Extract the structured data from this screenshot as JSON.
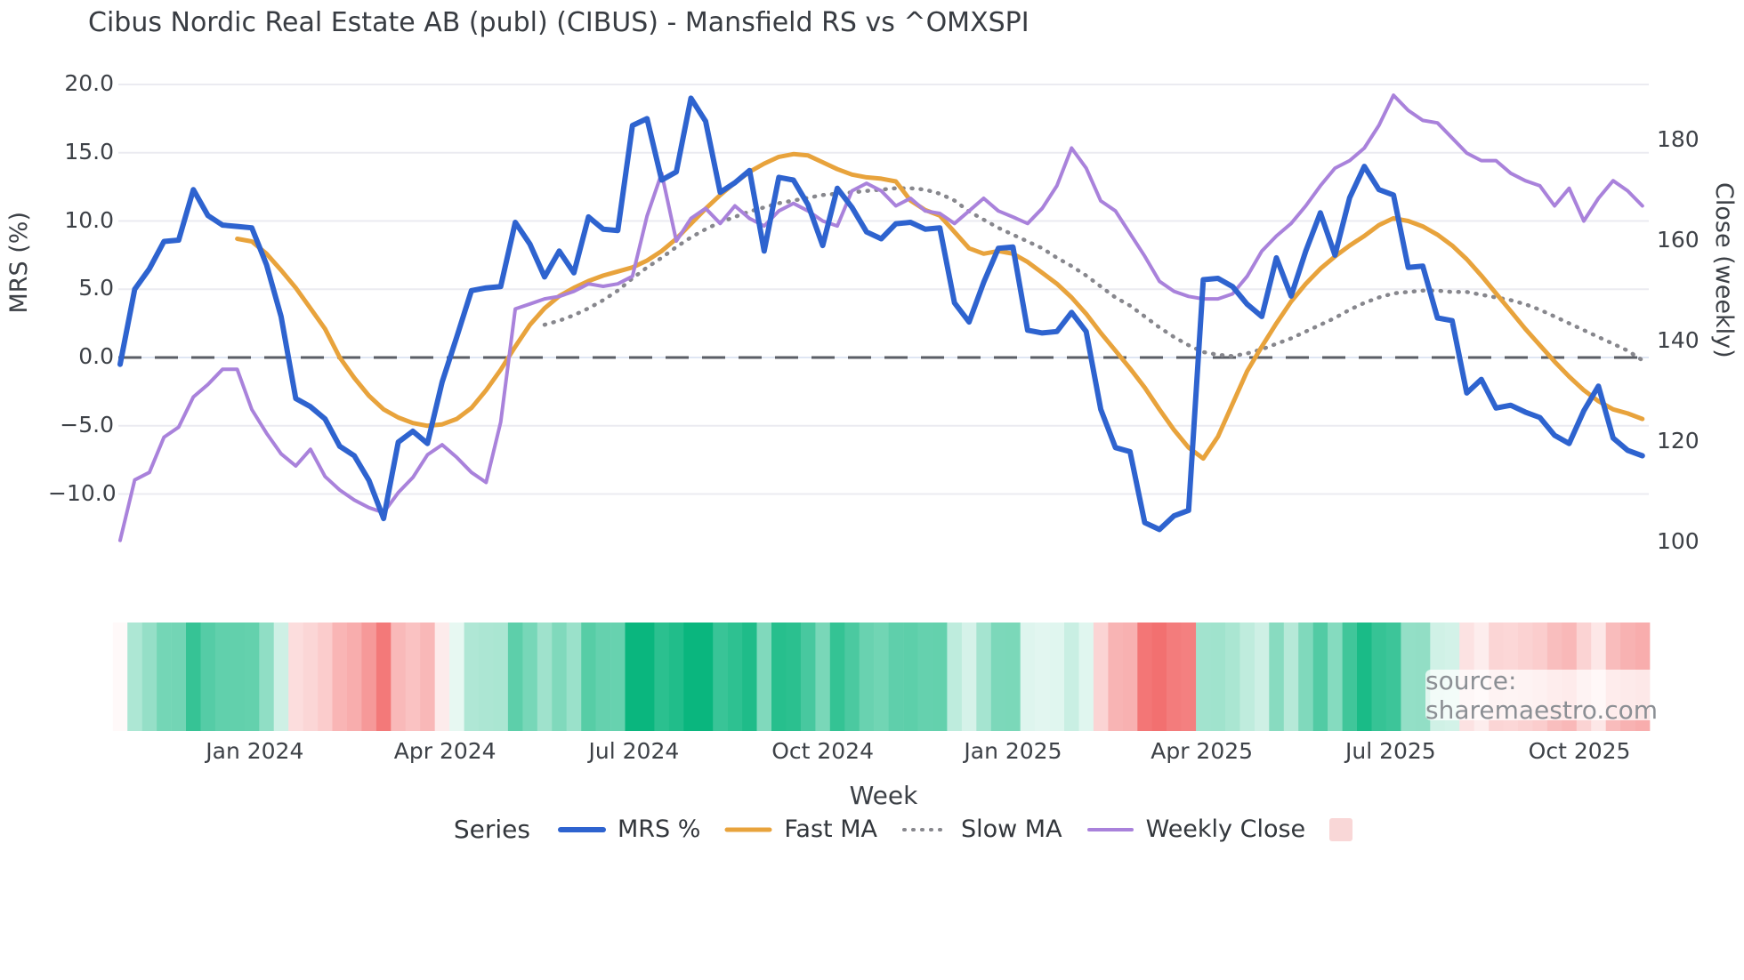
{
  "title": "Cibus Nordic Real Estate AB (publ) (CIBUS) - Mansfield RS vs ^OMXSPI",
  "watermark": {
    "text": "source: sharemaestro.com"
  },
  "legend": {
    "title": "Series",
    "items": [
      {
        "label": "MRS %",
        "color": "#2e63cf",
        "style": "solid",
        "width": 6
      },
      {
        "label": "Fast MA",
        "color": "#e8a33c",
        "style": "solid",
        "width": 5
      },
      {
        "label": "Slow MA",
        "color": "#87878d",
        "style": "dotted",
        "width": 4
      },
      {
        "label": "Weekly Close",
        "color": "#a982db",
        "style": "solid",
        "width": 4
      },
      {
        "label": "",
        "color": "#f9d7d7",
        "style": "swatch"
      }
    ]
  },
  "chart_data": {
    "type": "line",
    "title": "Cibus Nordic Real Estate AB (publ) (CIBUS) - Mansfield RS vs ^OMXSPI",
    "x": {
      "label": "Week",
      "unit": "week",
      "count": 105,
      "ticks": [
        {
          "label": "Jan 2024",
          "week": 9.2
        },
        {
          "label": "Apr 2024",
          "week": 22.2
        },
        {
          "label": "Jul 2024",
          "week": 35.1
        },
        {
          "label": "Oct 2024",
          "week": 48.0
        },
        {
          "label": "Jan 2025",
          "week": 61.0
        },
        {
          "label": "Apr 2025",
          "week": 73.9
        },
        {
          "label": "Jul 2025",
          "week": 86.8
        },
        {
          "label": "Oct 2025",
          "week": 99.7
        }
      ]
    },
    "y_left": {
      "label": "MRS (%)",
      "ticks": [
        20.0,
        15.0,
        10.0,
        5.0,
        0.0,
        -5.0,
        -10.0
      ],
      "tick_labels": [
        "20.0",
        "15.0",
        "10.0",
        "5.0",
        "0.0",
        "−5.0",
        "−10.0"
      ],
      "range": [
        -15.5,
        21.3
      ]
    },
    "y_right": {
      "label": "Close (weekly)",
      "ticks": [
        180,
        160,
        140,
        120,
        100
      ],
      "tick_labels": [
        "180",
        "160",
        "140",
        "120",
        "100"
      ],
      "range": [
        94.8,
        194.7
      ]
    },
    "zero_line": {
      "value": 0,
      "style": "dashed",
      "color": "#5a5e66"
    },
    "grid": {
      "on": true,
      "color": "#ebebf1",
      "zero_band_color": "#dfe6f3"
    },
    "series": [
      {
        "name": "MRS %",
        "axis": "left",
        "color": "#2e63cf",
        "width": 6,
        "style": "solid",
        "values": [
          -0.5,
          5.0,
          6.5,
          8.5,
          8.6,
          12.3,
          10.4,
          9.7,
          9.6,
          9.5,
          6.8,
          3.0,
          -3.0,
          -3.6,
          -4.5,
          -6.5,
          -7.2,
          -9.0,
          -11.8,
          -6.2,
          -5.4,
          -6.3,
          -1.8,
          1.5,
          4.9,
          5.1,
          5.2,
          9.9,
          8.3,
          5.9,
          7.8,
          6.2,
          10.3,
          9.4,
          9.3,
          17.0,
          17.5,
          13.0,
          13.6,
          19.0,
          17.3,
          12.1,
          12.8,
          13.7,
          7.8,
          13.2,
          13.0,
          11.2,
          8.2,
          12.4,
          11.0,
          9.2,
          8.7,
          9.8,
          9.9,
          9.4,
          9.5,
          4.0,
          2.6,
          5.5,
          8.0,
          8.1,
          2.0,
          1.8,
          1.9,
          3.3,
          1.9,
          -3.8,
          -6.6,
          -6.9,
          -12.1,
          -12.6,
          -11.6,
          -11.2,
          5.7,
          5.8,
          5.2,
          3.9,
          3.0,
          7.3,
          4.5,
          7.8,
          10.6,
          7.5,
          11.7,
          14.0,
          12.3,
          11.9,
          6.6,
          6.7,
          2.9,
          2.7,
          -2.6,
          -1.6,
          -3.7,
          -3.5,
          -4.0,
          -4.4,
          -5.7,
          -6.3,
          -3.9,
          -2.1,
          -5.9,
          -6.8,
          -7.2
        ]
      },
      {
        "name": "Fast MA",
        "axis": "left",
        "color": "#e8a33c",
        "width": 5,
        "style": "solid",
        "values": [
          null,
          null,
          null,
          null,
          null,
          null,
          null,
          null,
          8.7,
          8.5,
          7.6,
          6.4,
          5.1,
          3.6,
          2.1,
          0.0,
          -1.5,
          -2.8,
          -3.8,
          -4.4,
          -4.8,
          -5.0,
          -4.9,
          -4.5,
          -3.7,
          -2.4,
          -0.9,
          0.8,
          2.4,
          3.6,
          4.5,
          5.1,
          5.6,
          6.0,
          6.3,
          6.6,
          7.1,
          7.8,
          8.7,
          9.8,
          10.9,
          11.9,
          12.8,
          13.6,
          14.2,
          14.7,
          14.9,
          14.8,
          14.3,
          13.8,
          13.4,
          13.2,
          13.1,
          12.9,
          11.5,
          10.8,
          10.4,
          9.2,
          8.0,
          7.6,
          7.8,
          7.6,
          7.0,
          6.2,
          5.4,
          4.4,
          3.2,
          1.8,
          0.5,
          -0.8,
          -2.2,
          -3.8,
          -5.3,
          -6.6,
          -7.4,
          -5.8,
          -3.4,
          -1.0,
          0.8,
          2.5,
          4.1,
          5.4,
          6.5,
          7.4,
          8.2,
          8.9,
          9.7,
          10.2,
          10.0,
          9.6,
          9.0,
          8.2,
          7.2,
          6.0,
          4.7,
          3.4,
          2.1,
          0.9,
          -0.3,
          -1.4,
          -2.4,
          -3.2,
          -3.8,
          -4.1,
          -4.5
        ]
      },
      {
        "name": "Slow MA",
        "axis": "left",
        "color": "#87878d",
        "width": 4,
        "style": "dotted",
        "values": [
          null,
          null,
          null,
          null,
          null,
          null,
          null,
          null,
          null,
          null,
          null,
          null,
          null,
          null,
          null,
          null,
          null,
          null,
          null,
          null,
          null,
          null,
          null,
          null,
          null,
          null,
          null,
          null,
          null,
          2.4,
          2.7,
          3.1,
          3.6,
          4.2,
          4.9,
          5.8,
          6.6,
          7.3,
          8.1,
          8.8,
          9.4,
          9.9,
          10.3,
          10.7,
          11.0,
          11.3,
          11.5,
          11.7,
          11.9,
          12.0,
          12.1,
          12.2,
          12.3,
          12.4,
          12.4,
          12.3,
          12.0,
          11.5,
          10.7,
          10.1,
          9.5,
          9.0,
          8.5,
          8.0,
          7.3,
          6.7,
          6.0,
          5.2,
          4.4,
          3.8,
          3.0,
          2.2,
          1.5,
          0.9,
          0.4,
          0.2,
          0.1,
          0.3,
          0.6,
          1.0,
          1.4,
          1.9,
          2.4,
          2.9,
          3.5,
          4.0,
          4.4,
          4.7,
          4.8,
          4.9,
          4.9,
          4.8,
          4.8,
          4.6,
          4.4,
          4.2,
          3.9,
          3.5,
          3.0,
          2.5,
          2.0,
          1.5,
          1.0,
          0.5,
          -0.2
        ]
      },
      {
        "name": "Weekly Close",
        "axis": "right",
        "color": "#a982db",
        "width": 4,
        "style": "solid",
        "values": [
          100.5,
          112.5,
          114,
          121,
          123,
          129,
          131.5,
          134.5,
          134.5,
          126.5,
          121.8,
          117.7,
          115.3,
          118.6,
          113.2,
          110.5,
          108.5,
          107,
          106,
          110,
          113,
          117.5,
          119.5,
          117,
          114,
          112,
          124,
          146.5,
          147.5,
          148.5,
          149,
          150,
          151.5,
          151,
          151.5,
          153,
          165,
          173.5,
          160,
          164.5,
          166.5,
          163.5,
          167,
          164.5,
          163,
          166,
          167.5,
          166,
          164,
          163,
          170,
          171.5,
          170,
          167,
          168.5,
          166,
          165.5,
          163.5,
          166,
          168.5,
          166,
          164.8,
          163.5,
          166.5,
          171,
          178.5,
          174.5,
          168,
          166,
          161.5,
          157,
          152,
          150,
          149,
          148.5,
          148.5,
          149.5,
          153,
          158,
          161,
          163.5,
          167,
          171,
          174.5,
          176,
          178.5,
          183,
          189,
          186,
          184,
          183.5,
          180.5,
          177.5,
          176,
          176,
          173.5,
          172,
          171,
          167,
          170.5,
          164,
          168.5,
          172,
          170,
          167
        ]
      }
    ],
    "heatmap": {
      "source_series": "MRS %",
      "positive_color": "#0ab67e",
      "negative_color": "#f05555",
      "neutral_color": "#ffffff",
      "saturation_abs": 15
    }
  }
}
